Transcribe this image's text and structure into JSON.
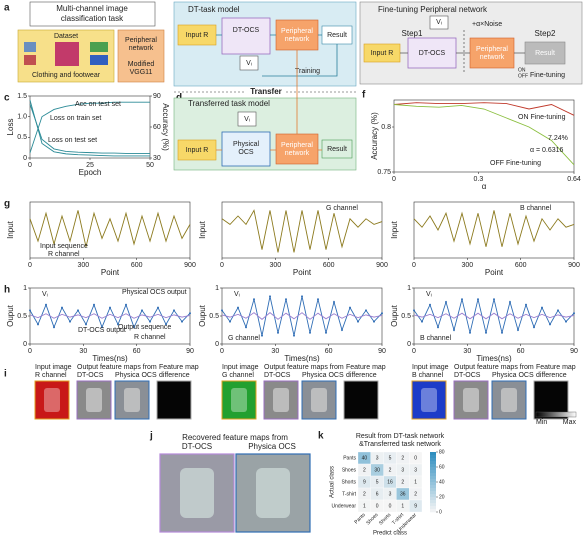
{
  "panel_letters": [
    "a",
    "b",
    "c",
    "d",
    "e",
    "f",
    "g",
    "h",
    "i",
    "j",
    "k"
  ],
  "diagrams": {
    "a": {
      "title": [
        "Multi-channel image",
        "classification task"
      ],
      "dataset": "Dataset",
      "dataset_caption": "Clothing and footwear",
      "peripheral": [
        "Peripheral",
        "network"
      ],
      "model": [
        "Modified",
        "VGG11"
      ]
    },
    "b": {
      "title": "DT-task model",
      "input": "Input R",
      "ocs": "DT-OCS",
      "peripheral": [
        "Peripheral",
        "network"
      ],
      "result": "Result",
      "vi": "Vᵢ",
      "training": "Training"
    },
    "transfer": "Transfer",
    "d": {
      "title": "Transferred task model",
      "input": "Input R",
      "ocs": [
        "Physical",
        "OCS"
      ],
      "peripheral": [
        "Peripheral",
        "network"
      ],
      "result": "Result",
      "vi": "Vᵢ"
    },
    "e": {
      "title": "Fine-tuning Peripheral network",
      "step1": "Step1",
      "step2": "Step2",
      "noise": "+α×Noise",
      "input": "Input R",
      "ocs": "DT-OCS",
      "peripheral": [
        "Peripheral",
        "network"
      ],
      "result": "Result",
      "vi": "Vᵢ",
      "on": "ON",
      "off": "OFF",
      "fine_tuning": "Fine-tuning"
    },
    "i": {
      "groups": [
        {
          "input": "Input image",
          "channel": "R channel",
          "maps": "Output feature maps from",
          "dt": "DT-OCS",
          "phys": "Physica OCS",
          "diff": [
            "Feature map",
            "difference"
          ]
        },
        {
          "input": "Input image",
          "channel": "G channel",
          "maps": "Output feature maps from",
          "dt": "DT-OCS",
          "phys": "Physica OCS",
          "diff": [
            "Feature map",
            "difference"
          ]
        },
        {
          "input": "Input image",
          "channel": "B channel",
          "maps": "Output feature maps from",
          "dt": "DT-OCS",
          "phys": "Physica OCS",
          "diff": [
            "Feature map",
            "difference"
          ]
        }
      ],
      "colorbar": [
        "Min",
        "Max"
      ]
    },
    "j": {
      "title": "Recovered feature maps from",
      "dt": "DT-OCS",
      "phys": "Physica OCS"
    }
  },
  "chart_data": [
    {
      "type": "line",
      "xlabel": "Epoch",
      "ylabel": "Loss",
      "y2label": "Accuracy (%)",
      "x": [
        0,
        5,
        10,
        15,
        20,
        25,
        30,
        35,
        40,
        45,
        50
      ],
      "xlim": [
        0,
        50
      ],
      "xticks": [
        0,
        25,
        50
      ],
      "ylim": [
        0,
        1.5
      ],
      "yticks": [
        0,
        0.5,
        {
          "value": 1,
          "label": "1.0"
        },
        1.5
      ],
      "y2lim": [
        30,
        90
      ],
      "y2ticks": [
        30,
        60,
        90
      ],
      "series": [
        {
          "name": "Loss on train set",
          "color": "#2a8a96",
          "values": [
            1.4,
            0.35,
            0.15,
            0.1,
            0.08,
            0.07,
            0.06,
            0.05,
            0.05,
            0.05,
            0.05
          ]
        },
        {
          "name": "Loss on test set",
          "color": "#2a8a96",
          "values": [
            1.3,
            0.45,
            0.22,
            0.16,
            0.14,
            0.13,
            0.12,
            0.12,
            0.11,
            0.11,
            0.11
          ]
        },
        {
          "name": "Acc on test set",
          "color": "#2a8a96",
          "axis": "y2",
          "values": [
            35,
            70,
            77,
            80,
            82,
            83,
            83,
            84,
            84,
            84,
            84
          ]
        }
      ]
    },
    {
      "type": "line",
      "xlabel": "α",
      "ylabel": "Accuracy (%)",
      "x": [
        0,
        0.08,
        0.16,
        0.24,
        0.32,
        0.4,
        0.48,
        0.56,
        0.64
      ],
      "xlim": [
        0,
        0.64
      ],
      "xticks": [
        0,
        0.3,
        0.64
      ],
      "ylim": [
        0.75,
        0.83
      ],
      "yticks": [
        0.75,
        0.8
      ],
      "series": [
        {
          "name": "ON Fine-tuning",
          "color": "#c0392b",
          "values": [
            0.825,
            0.827,
            0.826,
            0.826,
            0.827,
            0.826,
            0.82,
            0.825,
            0.813
          ]
        },
        {
          "name": "OFF Fine-tuning",
          "color": "#8bbf3f",
          "values": [
            0.825,
            0.823,
            0.822,
            0.824,
            0.82,
            0.81,
            0.8,
            0.785,
            0.758
          ]
        }
      ],
      "annotations": [
        "7.24%",
        "α = 0.6316"
      ]
    },
    {
      "type": "line",
      "xlabel": "Point",
      "ylabel": "Input",
      "x": [
        0,
        45,
        90,
        135,
        180,
        225,
        270,
        315,
        360,
        405,
        450,
        495,
        540,
        585,
        630,
        675,
        720,
        765,
        810,
        855,
        900
      ],
      "xlim": [
        0,
        900
      ],
      "xticks": [
        0,
        300,
        600,
        900
      ],
      "ylim": [
        0,
        1
      ],
      "series": [
        {
          "color": "#8c7a1e",
          "values": [
            0.7,
            0.3,
            0.8,
            0.25,
            0.75,
            0.3,
            0.85,
            0.2,
            0.8,
            0.35,
            0.7,
            0.3,
            0.8,
            0.25,
            0.75,
            0.3,
            0.8,
            0.3,
            0.75,
            0.35,
            0.6
          ]
        }
      ],
      "annotations": [
        "Input sequence",
        "R channel"
      ]
    },
    {
      "type": "line",
      "xlabel": "Point",
      "ylabel": "Input",
      "x": [
        0,
        45,
        90,
        135,
        180,
        225,
        270,
        315,
        360,
        405,
        450,
        495,
        540,
        585,
        630,
        675,
        720,
        765,
        810,
        855,
        900
      ],
      "xlim": [
        0,
        900
      ],
      "xticks": [
        0,
        300,
        600,
        900
      ],
      "ylim": [
        0,
        1
      ],
      "series": [
        {
          "color": "#8c7a1e",
          "values": [
            0.7,
            0.6,
            0.75,
            0.6,
            0.85,
            0.15,
            0.85,
            0.1,
            0.85,
            0.1,
            0.85,
            0.15,
            0.85,
            0.15,
            0.8,
            0.2,
            0.7,
            0.55,
            0.7,
            0.6,
            0.65
          ]
        }
      ],
      "annotations": [
        "G channel"
      ]
    },
    {
      "type": "line",
      "xlabel": "Point",
      "ylabel": "Input",
      "x": [
        0,
        45,
        90,
        135,
        180,
        225,
        270,
        315,
        360,
        405,
        450,
        495,
        540,
        585,
        630,
        675,
        720,
        765,
        810,
        855,
        900
      ],
      "xlim": [
        0,
        900
      ],
      "xticks": [
        0,
        300,
        600,
        900
      ],
      "ylim": [
        0,
        1
      ],
      "series": [
        {
          "color": "#8c7a1e",
          "values": [
            0.7,
            0.55,
            0.75,
            0.5,
            0.8,
            0.3,
            0.8,
            0.25,
            0.8,
            0.2,
            0.85,
            0.2,
            0.8,
            0.25,
            0.75,
            0.3,
            0.7,
            0.5,
            0.7,
            0.55,
            0.6
          ]
        }
      ],
      "annotations": [
        "B channel"
      ]
    },
    {
      "type": "line",
      "xlabel": "Times(ns)",
      "ylabel": "Ouput",
      "x": [
        0,
        4.5,
        9,
        13.5,
        18,
        22.5,
        27,
        31.5,
        36,
        40.5,
        45,
        49.5,
        54,
        58.5,
        63,
        67.5,
        72,
        76.5,
        81,
        85.5,
        90
      ],
      "xlim": [
        0,
        90
      ],
      "xticks": [
        0,
        30,
        60,
        90
      ],
      "ylim": [
        0,
        1
      ],
      "yticks": [
        0,
        0.5,
        1
      ],
      "series": [
        {
          "color": "#2f6db5",
          "markers": true,
          "values": [
            0.6,
            0.35,
            0.7,
            0.3,
            0.65,
            0.4,
            0.6,
            0.35,
            0.7,
            0.3,
            0.65,
            0.35,
            0.7,
            0.3,
            0.6,
            0.4,
            0.65,
            0.35,
            0.6,
            0.4,
            0.55
          ]
        },
        {
          "color": "#9a7fd0",
          "values": [
            0.52,
            0.47,
            0.54,
            0.46,
            0.53,
            0.48,
            0.52,
            0.47,
            0.54,
            0.46,
            0.53,
            0.47,
            0.54,
            0.46,
            0.52,
            0.48,
            0.53,
            0.47,
            0.52,
            0.48,
            0.51
          ]
        }
      ],
      "annotations": [
        "Physical OCS output",
        "DT-OCS output",
        "Output sequence",
        "R channel",
        "Vᵢ"
      ]
    },
    {
      "type": "line",
      "xlabel": "Times(ns)",
      "ylabel": "Ouput",
      "x": [
        0,
        4.5,
        9,
        13.5,
        18,
        22.5,
        27,
        31.5,
        36,
        40.5,
        45,
        49.5,
        54,
        58.5,
        63,
        67.5,
        72,
        76.5,
        81,
        85.5,
        90
      ],
      "xlim": [
        0,
        90
      ],
      "xticks": [
        0,
        30,
        60,
        90
      ],
      "ylim": [
        0,
        1
      ],
      "yticks": [
        0,
        0.5,
        1
      ],
      "series": [
        {
          "color": "#2f6db5",
          "markers": true,
          "values": [
            0.6,
            0.4,
            0.65,
            0.3,
            0.8,
            0.15,
            0.85,
            0.2,
            0.8,
            0.15,
            0.85,
            0.2,
            0.8,
            0.2,
            0.75,
            0.25,
            0.65,
            0.4,
            0.6,
            0.4,
            0.55
          ]
        },
        {
          "color": "#9a7fd0",
          "values": [
            0.52,
            0.48,
            0.53,
            0.46,
            0.56,
            0.44,
            0.56,
            0.44,
            0.55,
            0.45,
            0.56,
            0.44,
            0.55,
            0.45,
            0.54,
            0.46,
            0.53,
            0.47,
            0.52,
            0.48,
            0.51
          ]
        }
      ],
      "annotations": [
        "G channel",
        "Vᵢ"
      ]
    },
    {
      "type": "line",
      "xlabel": "Times(ns)",
      "ylabel": "Ouput",
      "x": [
        0,
        4.5,
        9,
        13.5,
        18,
        22.5,
        27,
        31.5,
        36,
        40.5,
        45,
        49.5,
        54,
        58.5,
        63,
        67.5,
        72,
        76.5,
        81,
        85.5,
        90
      ],
      "xlim": [
        0,
        90
      ],
      "xticks": [
        0,
        30,
        60,
        90
      ],
      "ylim": [
        0,
        1
      ],
      "yticks": [
        0,
        0.5,
        1
      ],
      "series": [
        {
          "color": "#2f6db5",
          "markers": true,
          "values": [
            0.6,
            0.4,
            0.7,
            0.3,
            0.75,
            0.25,
            0.8,
            0.2,
            0.8,
            0.2,
            0.8,
            0.2,
            0.75,
            0.25,
            0.7,
            0.3,
            0.65,
            0.35,
            0.6,
            0.4,
            0.55
          ]
        },
        {
          "color": "#9a7fd0",
          "values": [
            0.52,
            0.48,
            0.53,
            0.47,
            0.54,
            0.46,
            0.55,
            0.45,
            0.55,
            0.45,
            0.55,
            0.45,
            0.54,
            0.46,
            0.53,
            0.47,
            0.53,
            0.47,
            0.52,
            0.48,
            0.51
          ]
        }
      ],
      "annotations": [
        "B channel",
        "Vᵢ"
      ]
    },
    {
      "type": "heatmap",
      "title": [
        "Result from DT-task network",
        "&Transferred task network"
      ],
      "xlabel": "Predict class",
      "ylabel": "Actual class",
      "categories": [
        "Pants",
        "Shoes",
        "Shorts",
        "T-shirt",
        "Underwear"
      ],
      "values": [
        [
          40,
          3,
          5,
          2,
          0
        ],
        [
          2,
          30,
          2,
          3,
          3
        ],
        [
          9,
          5,
          16,
          2,
          1
        ],
        [
          2,
          6,
          3,
          36,
          2
        ],
        [
          1,
          0,
          0,
          1,
          9
        ]
      ],
      "color": "#2b8cbe",
      "zlim": [
        0,
        80
      ],
      "zticks": [
        0,
        20,
        40,
        60,
        80
      ]
    }
  ]
}
